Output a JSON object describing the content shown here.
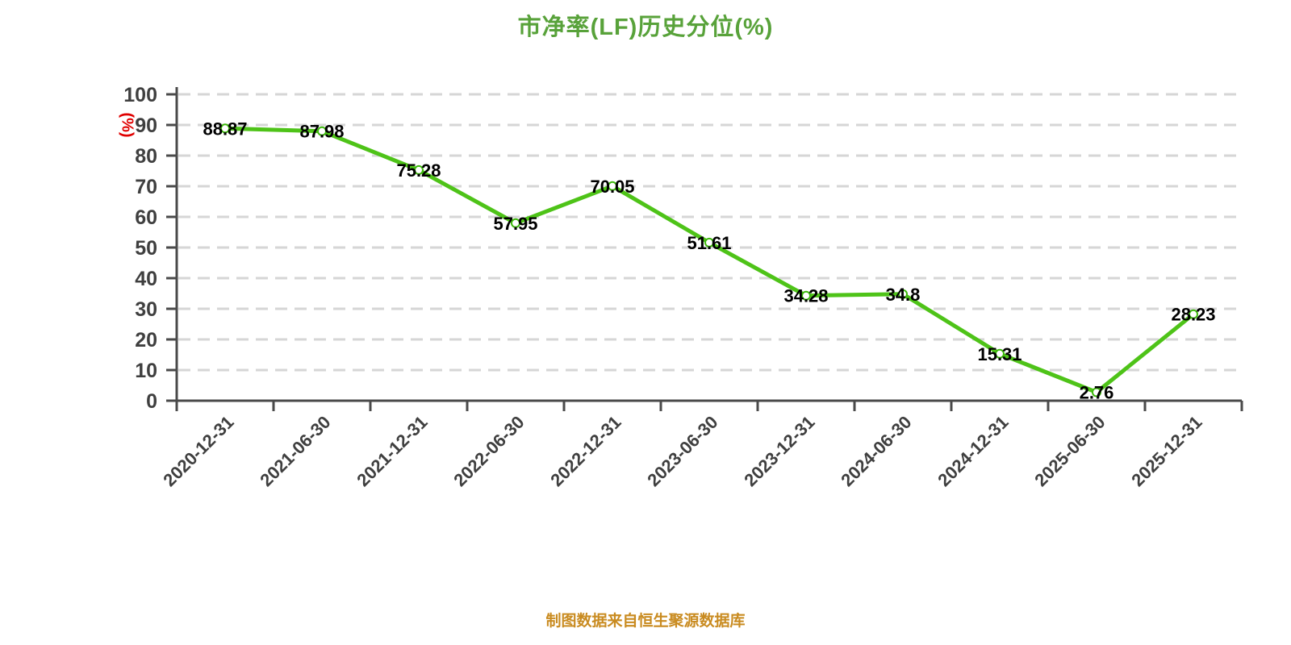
{
  "window": {
    "background": "#FFFFFF"
  },
  "header": {
    "title": "市净率(LF)历史分位(%)"
  },
  "footer": {
    "note": "制图数据来自恒生聚源数据库"
  },
  "colors": {
    "title": "#58A23A",
    "footer_note": "#C98B20",
    "series_line": "#4EC318",
    "marker_fill": "#FFFFFF",
    "marker_stroke": "#3DB80C",
    "value_label": "#000000",
    "axis": "#4A4A4A",
    "tick_label": "#3F3F3F",
    "grid": "#D6D6D6",
    "y_unit_label": "#E00000"
  },
  "chart_data": {
    "type": "line",
    "title": "市净率(LF)历史分位(%)",
    "xlabel": "",
    "ylabel": "(%)",
    "categories": [
      "2020-12-31",
      "2021-06-30",
      "2021-12-31",
      "2022-06-30",
      "2022-12-31",
      "2023-06-30",
      "2023-12-31",
      "2024-06-30",
      "2024-12-31",
      "2025-06-30",
      "2025-12-31"
    ],
    "values": [
      88.87,
      87.98,
      75.28,
      57.95,
      70.05,
      51.61,
      34.28,
      34.8,
      15.31,
      2.76,
      28.23
    ],
    "ylim": [
      0,
      100
    ],
    "yticks": [
      0,
      10,
      20,
      30,
      40,
      50,
      60,
      70,
      80,
      90,
      100
    ],
    "grid": "horizontal-dashed",
    "legend": "none",
    "point_labels_visible": true,
    "x_tick_label_rotation_deg": -45
  }
}
